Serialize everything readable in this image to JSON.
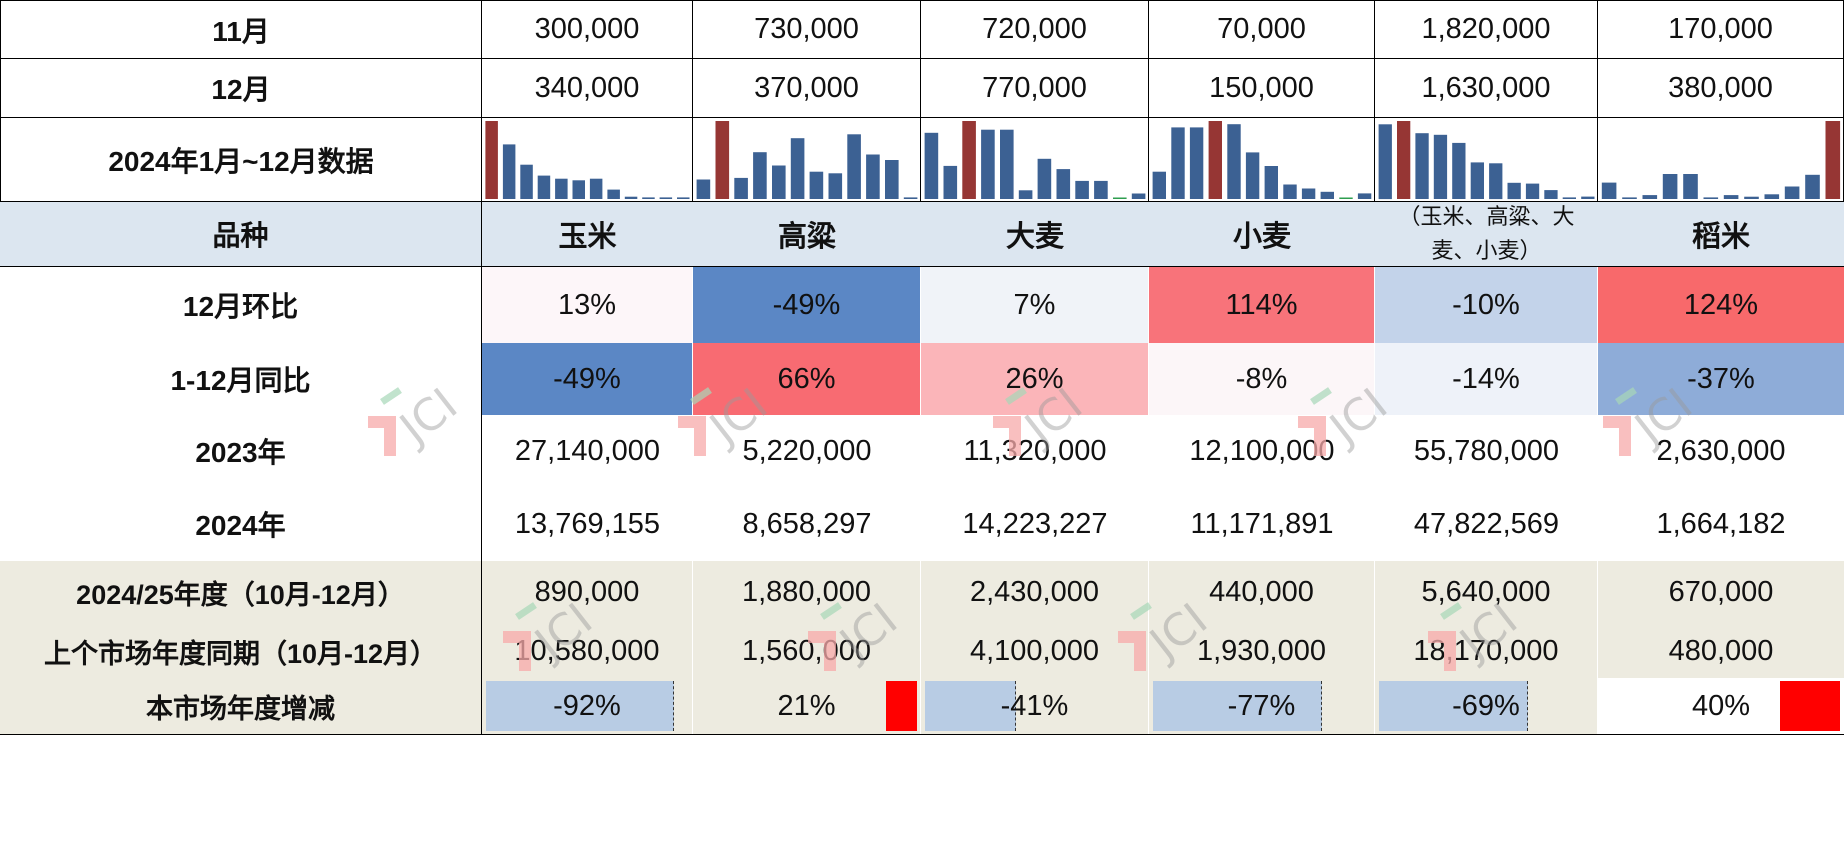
{
  "labels": {
    "nov": "11月",
    "dec": "12月",
    "chart_row": "2024年1月~12月数据",
    "variety": "品种",
    "mom": "12月环比",
    "yoy": "1-12月同比",
    "y2023": "2023年",
    "y2024": "2024年",
    "season": "2024/25年度（10月-12月）",
    "prev_season": "上个市场年度同期（10月-12月）",
    "change": "本市场年度增减"
  },
  "varieties": [
    "玉米",
    "高粱",
    "大麦",
    "小麦",
    "（玉米、高粱、大麦、小麦）",
    "稻米"
  ],
  "total_header_lines": [
    "（玉米、高粱、大",
    "麦、小麦）"
  ],
  "nov": [
    "300,000",
    "730,000",
    "720,000",
    "70,000",
    "1,820,000",
    "170,000"
  ],
  "dec": [
    "340,000",
    "370,000",
    "770,000",
    "150,000",
    "1,630,000",
    "380,000"
  ],
  "mom": [
    "13%",
    "-49%",
    "7%",
    "114%",
    "-10%",
    "124%"
  ],
  "mom_colors": [
    "#fdf6f9",
    "#5b87c5",
    "#f0f3f8",
    "#f8737a",
    "#c3d3ea",
    "#f8696b"
  ],
  "yoy": [
    "-49%",
    "66%",
    "26%",
    "-8%",
    "-14%",
    "-37%"
  ],
  "yoy_colors": [
    "#5b87c5",
    "#f86b72",
    "#fbb5b9",
    "#fcf6f8",
    "#eef2f9",
    "#8eacd8"
  ],
  "y2023": [
    "27,140,000",
    "5,220,000",
    "11,320,000",
    "12,100,000",
    "55,780,000",
    "2,630,000"
  ],
  "y2024": [
    "13,769,155",
    "8,658,297",
    "14,223,227",
    "11,171,891",
    "47,822,569",
    "1,664,182"
  ],
  "season": [
    "890,000",
    "1,880,000",
    "2,430,000",
    "440,000",
    "5,640,000",
    "670,000"
  ],
  "prev_season": [
    "10,580,000",
    "1,560,000",
    "4,100,000",
    "1,930,000",
    "18,170,000",
    "480,000"
  ],
  "change": [
    "-92%",
    "21%",
    "-41%",
    "-77%",
    "-69%",
    "40%"
  ],
  "change_values": [
    -0.92,
    0.21,
    -0.41,
    -0.77,
    -0.69,
    0.4
  ],
  "colors": {
    "bar_normal": "#3c6193",
    "bar_max": "#963634",
    "bar_zero": "#2e9e4f",
    "negative_bar": "#b8cce4",
    "positive_bar": "#ff0000",
    "header_bg": "#dce6f0",
    "beige_bg": "#edebe0"
  },
  "sparklines": [
    {
      "values": [
        100,
        70,
        44,
        30,
        26,
        24,
        26,
        12,
        3,
        2,
        2,
        2
      ],
      "max_index": 0
    },
    {
      "values": [
        25,
        100,
        27,
        60,
        43,
        78,
        35,
        33,
        83,
        57,
        50,
        2
      ],
      "max_index": 1
    },
    {
      "values": [
        84,
        42,
        99,
        88,
        88,
        11,
        51,
        38,
        23,
        23,
        0,
        7
      ],
      "max_index": 2
    },
    {
      "values": [
        34,
        89,
        89,
        97,
        93,
        58,
        41,
        18,
        13,
        9,
        0,
        7
      ],
      "max_index": 3
    },
    {
      "values": [
        92,
        96,
        81,
        79,
        69,
        45,
        44,
        20,
        19,
        11,
        2,
        3
      ],
      "max_index": 1
    },
    {
      "values": [
        21,
        2,
        5,
        32,
        32,
        2,
        5,
        3,
        6,
        16,
        31,
        100
      ],
      "max_index": 11
    }
  ],
  "watermark": "JCI"
}
